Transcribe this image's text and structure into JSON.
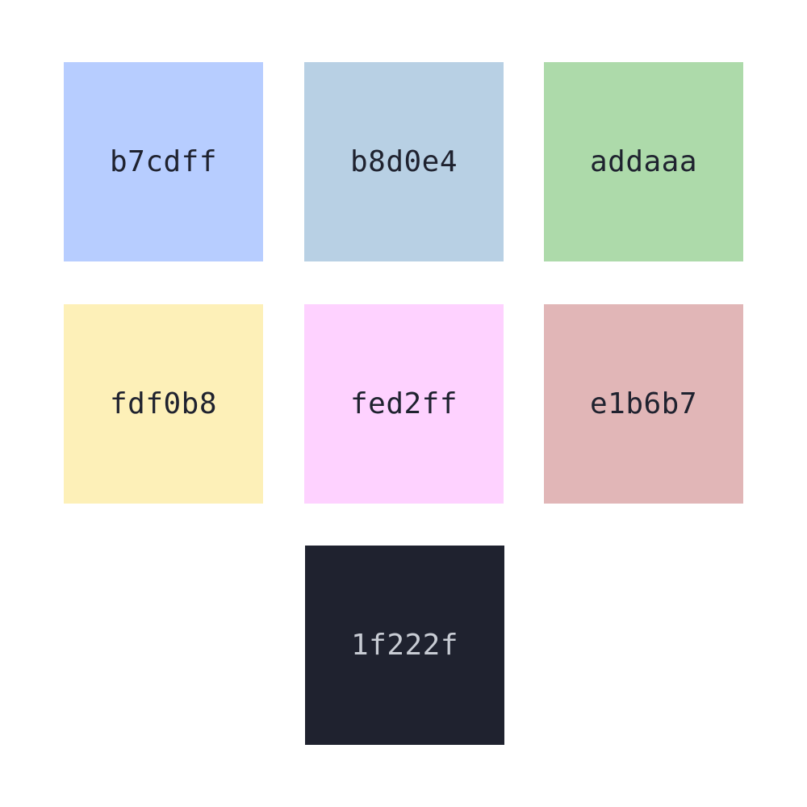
{
  "swatches": [
    {
      "label": "b7cdff",
      "color": "#b7cdff",
      "text_color": "#1f222f"
    },
    {
      "label": "b8d0e4",
      "color": "#b8d0e4",
      "text_color": "#1f222f"
    },
    {
      "label": "addaaa",
      "color": "#addaaa",
      "text_color": "#1f222f"
    },
    {
      "label": "fdf0b8",
      "color": "#fdf0b8",
      "text_color": "#1f222f"
    },
    {
      "label": "fed2ff",
      "color": "#fed2ff",
      "text_color": "#1f222f"
    },
    {
      "label": "e1b6b7",
      "color": "#e1b6b7",
      "text_color": "#1f222f"
    },
    {
      "label": "1f222f",
      "color": "#1f222f",
      "text_color": "#c8ccd4"
    }
  ]
}
